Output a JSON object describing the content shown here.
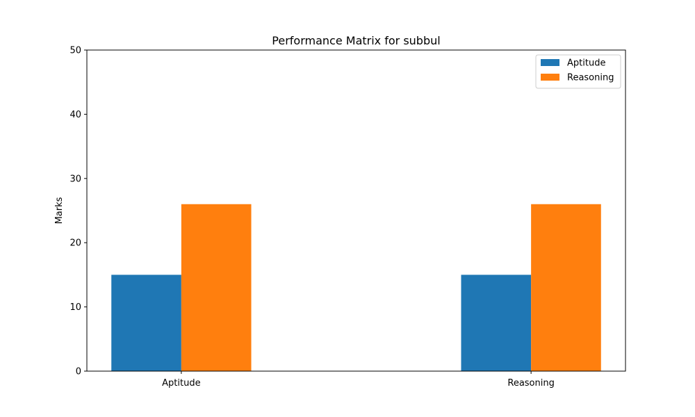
{
  "chart_data": {
    "type": "bar",
    "title": "Performance Matrix for subbul",
    "xlabel": "",
    "ylabel": "Marks",
    "categories": [
      "Aptitude",
      "Reasoning"
    ],
    "series": [
      {
        "name": "Aptitude",
        "color": "#1f77b4",
        "values": [
          15,
          15
        ]
      },
      {
        "name": "Reasoning",
        "color": "#ff7f0e",
        "values": [
          26,
          26
        ]
      }
    ],
    "ylim": [
      0,
      50
    ],
    "yticks": [
      0,
      10,
      20,
      30,
      40,
      50
    ],
    "grid": false,
    "legend_position": "top-right"
  }
}
